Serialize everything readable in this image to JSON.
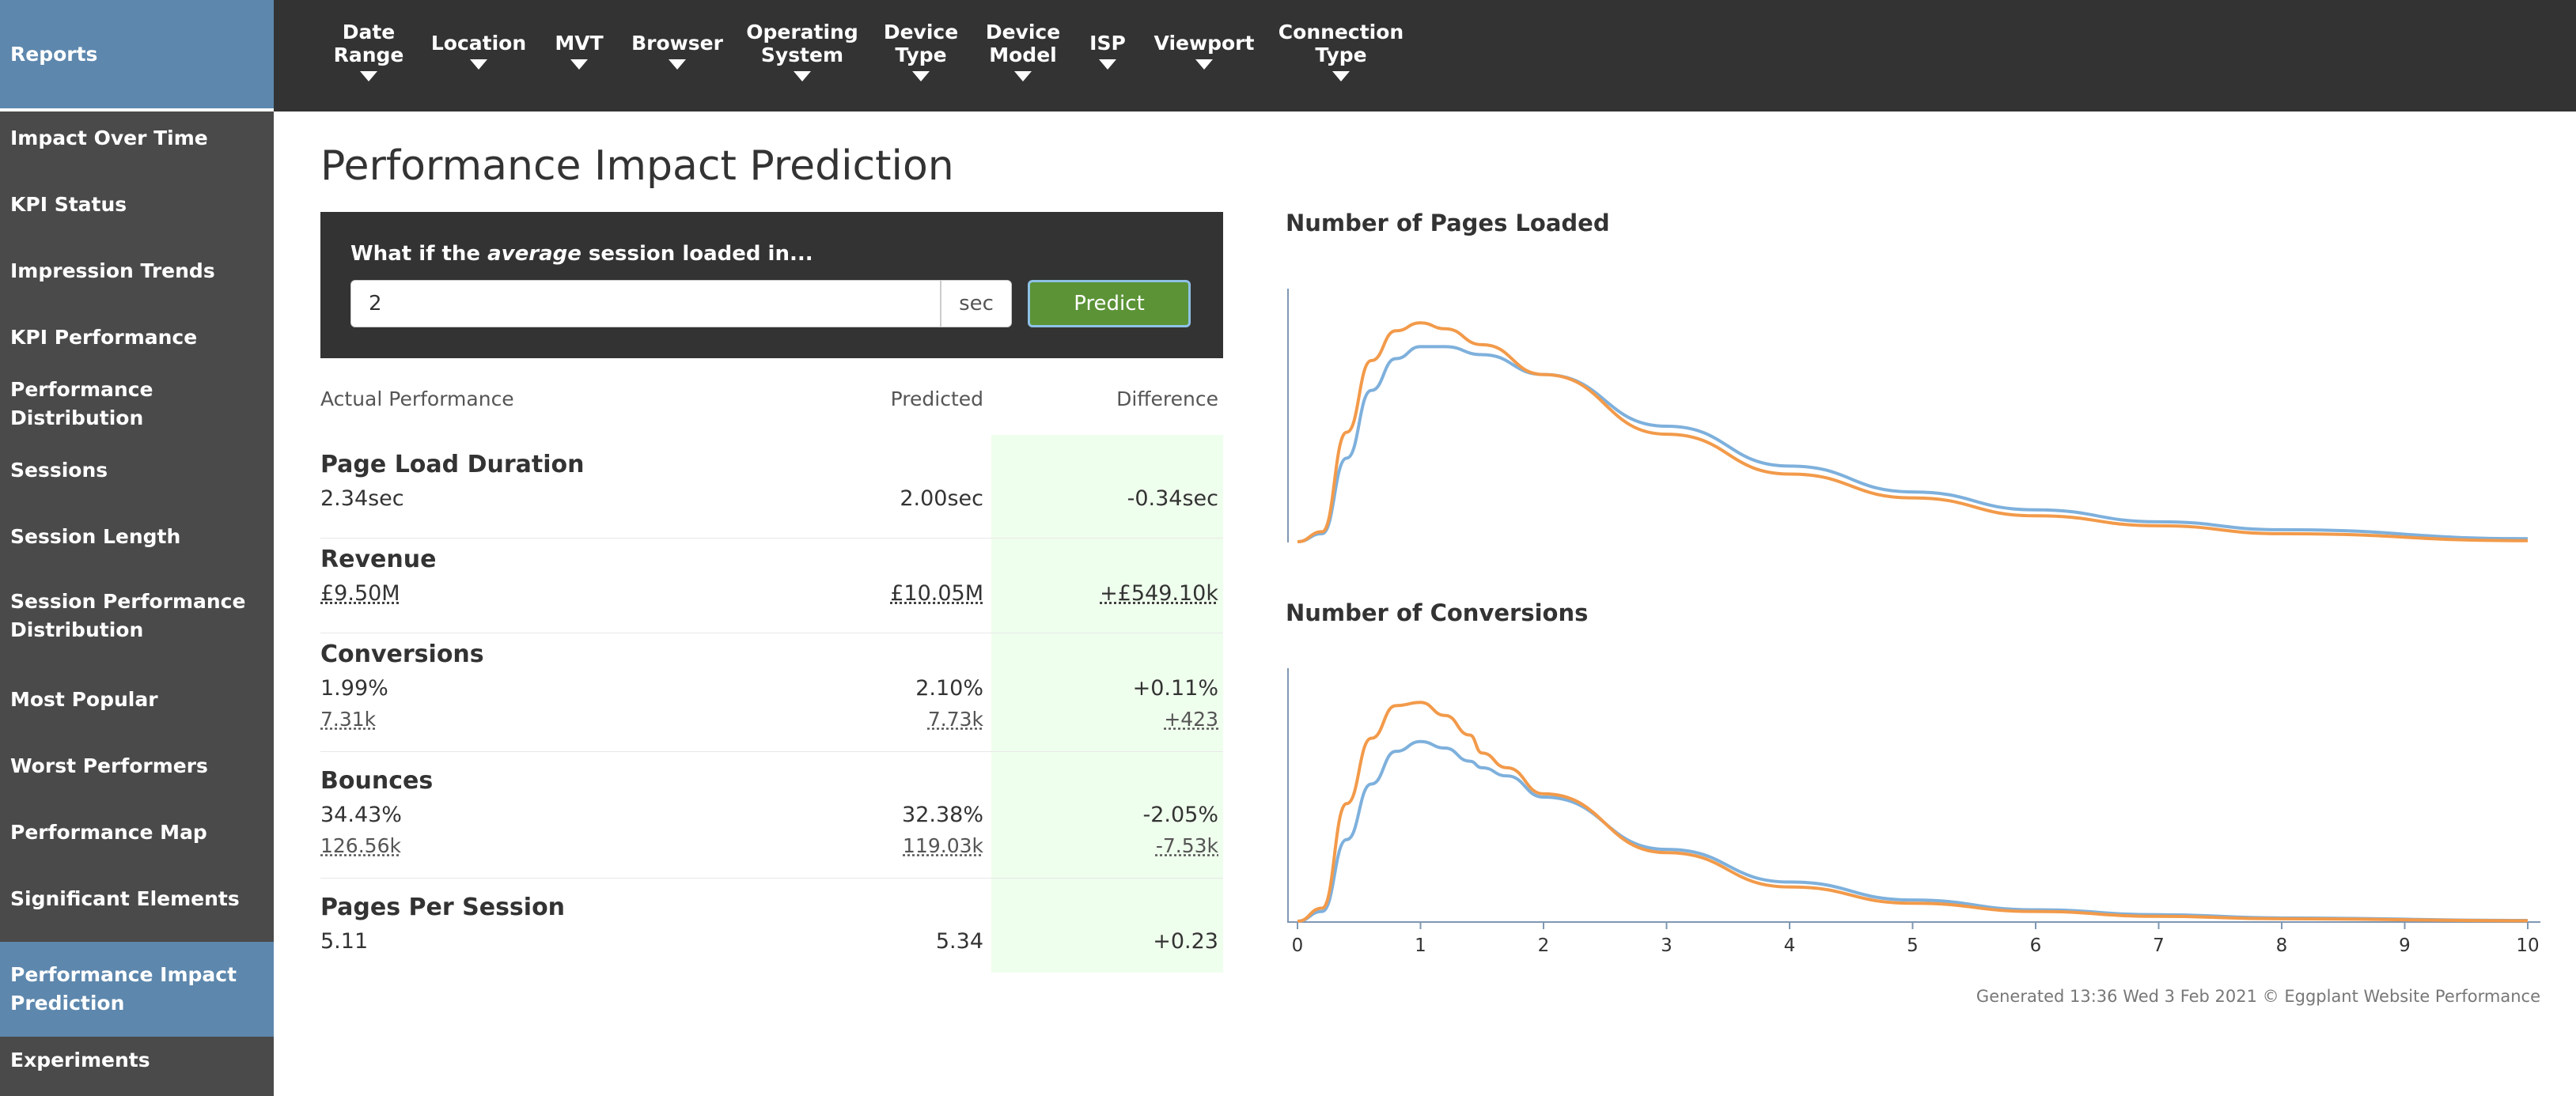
{
  "sidebar": {
    "header": "Reports",
    "items": [
      {
        "label": "Impact Over Time",
        "active": false
      },
      {
        "label": "KPI Status",
        "active": false
      },
      {
        "label": "Impression Trends",
        "active": false
      },
      {
        "label": "KPI Performance",
        "active": false
      },
      {
        "label": "Performance Distribution",
        "active": false
      },
      {
        "label": "Sessions",
        "active": false
      },
      {
        "label": "Session Length",
        "active": false
      },
      {
        "label": "Session Performance Distribution",
        "active": false
      },
      {
        "label": "Most Popular",
        "active": false
      },
      {
        "label": "Worst Performers",
        "active": false
      },
      {
        "label": "Performance Map",
        "active": false
      },
      {
        "label": "Significant Elements",
        "active": false
      },
      {
        "label": "Performance Impact Prediction",
        "active": true
      },
      {
        "label": "Experiments",
        "active": false
      }
    ]
  },
  "filters": [
    {
      "label": "Date\nRange"
    },
    {
      "label": "Location"
    },
    {
      "label": "MVT"
    },
    {
      "label": "Browser"
    },
    {
      "label": "Operating\nSystem"
    },
    {
      "label": "Device\nType"
    },
    {
      "label": "Device\nModel"
    },
    {
      "label": "ISP"
    },
    {
      "label": "Viewport"
    },
    {
      "label": "Connection\nType"
    }
  ],
  "page": {
    "title": "Performance Impact Prediction"
  },
  "predict": {
    "question_prefix": "What if the ",
    "question_emph": "average",
    "question_suffix": " session loaded in...",
    "input_value": "2",
    "unit": "sec",
    "button": "Predict"
  },
  "table": {
    "headers": {
      "actual": "Actual Performance",
      "predicted": "Predicted",
      "difference": "Difference"
    },
    "rows": [
      {
        "title": "Page Load Duration",
        "actual": "2.34sec",
        "predicted": "2.00sec",
        "difference": "-0.34sec"
      },
      {
        "title": "Revenue",
        "actual": "£9.50M",
        "predicted": "£10.05M",
        "difference": "+£549.10k"
      },
      {
        "title": "Conversions",
        "actual": "1.99%",
        "predicted": "2.10%",
        "difference": "+0.11%",
        "actual_sub": "7.31k",
        "predicted_sub": "7.73k",
        "difference_sub": "+423"
      },
      {
        "title": "Bounces",
        "actual": "34.43%",
        "predicted": "32.38%",
        "difference": "-2.05%",
        "actual_sub": "126.56k",
        "predicted_sub": "119.03k",
        "difference_sub": "-7.53k"
      },
      {
        "title": "Pages Per Session",
        "actual": "5.11",
        "predicted": "5.34",
        "difference": "+0.23"
      }
    ]
  },
  "colors": {
    "actual_line": "#7eb0dc",
    "predicted_line": "#f29a4a",
    "accent": "#5d87ad",
    "button": "#5b9336"
  },
  "chart_data": [
    {
      "type": "line",
      "title": "Number of Pages Loaded",
      "xlim": [
        0,
        10
      ],
      "series": [
        {
          "color": "#7eb0dc",
          "x": [
            0,
            0.2,
            0.4,
            0.6,
            0.8,
            1.0,
            1.2,
            1.5,
            2,
            3,
            4,
            5,
            6,
            7,
            8,
            10
          ],
          "y": [
            0,
            4,
            42,
            76,
            92,
            98,
            98,
            94,
            84,
            58,
            38,
            25,
            16,
            10,
            6,
            1.5
          ]
        },
        {
          "color": "#f29a4a",
          "x": [
            0,
            0.2,
            0.4,
            0.6,
            0.8,
            1.0,
            1.2,
            1.5,
            2,
            3,
            4,
            5,
            6,
            7,
            8,
            10
          ],
          "y": [
            0,
            5,
            55,
            91,
            106,
            110,
            107,
            99,
            84,
            54,
            34,
            22,
            13,
            8,
            4,
            0.5
          ]
        }
      ]
    },
    {
      "type": "line",
      "title": "Number of Conversions",
      "xlim": [
        0,
        10
      ],
      "x_ticks": [
        0,
        1,
        2,
        3,
        4,
        5,
        6,
        7,
        8,
        9,
        10
      ],
      "series": [
        {
          "color": "#7eb0dc",
          "x": [
            0,
            0.2,
            0.4,
            0.6,
            0.8,
            1.0,
            1.2,
            1.4,
            1.5,
            1.7,
            2,
            3,
            4,
            5,
            6,
            7,
            8,
            10
          ],
          "y": [
            0,
            6,
            50,
            84,
            104,
            110,
            106,
            98,
            94,
            89,
            76,
            44,
            24,
            13,
            7,
            4,
            2,
            0.5
          ]
        },
        {
          "color": "#f29a4a",
          "x": [
            0,
            0.2,
            0.4,
            0.6,
            0.8,
            1.0,
            1.2,
            1.4,
            1.5,
            1.7,
            2,
            3,
            4,
            5,
            6,
            7,
            8,
            10
          ],
          "y": [
            0,
            8,
            72,
            112,
            132,
            134,
            126,
            114,
            103,
            94,
            78,
            42,
            21,
            11,
            6,
            3,
            1.5,
            0.3
          ]
        }
      ]
    }
  ],
  "footer": "Generated 13:36 Wed 3 Feb 2021 © Eggplant Website Performance"
}
